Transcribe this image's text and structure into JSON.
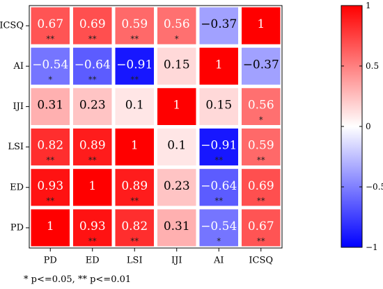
{
  "chart_data": {
    "type": "heatmap",
    "categories": [
      "PD",
      "ED",
      "LSI",
      "IJI",
      "AI",
      "ICSQ"
    ],
    "rows_top_to_bottom": [
      "ICSQ",
      "AI",
      "IJI",
      "LSI",
      "ED",
      "PD"
    ],
    "values": [
      [
        0.67,
        0.69,
        0.59,
        0.56,
        -0.37,
        1
      ],
      [
        -0.54,
        -0.64,
        -0.91,
        0.15,
        1,
        -0.37
      ],
      [
        0.31,
        0.23,
        0.1,
        1,
        0.15,
        0.56
      ],
      [
        0.82,
        0.89,
        1,
        0.1,
        -0.91,
        0.59
      ],
      [
        0.93,
        1,
        0.89,
        0.23,
        -0.64,
        0.69
      ],
      [
        1,
        0.93,
        0.82,
        0.31,
        -0.54,
        0.67
      ]
    ],
    "value_labels": [
      [
        "0.67",
        "0.69",
        "0.59",
        "0.56",
        "−0.37",
        "1"
      ],
      [
        "−0.54",
        "−0.64",
        "−0.91",
        "0.15",
        "1",
        "−0.37"
      ],
      [
        "0.31",
        "0.23",
        "0.1",
        "1",
        "0.15",
        "0.56"
      ],
      [
        "0.82",
        "0.89",
        "1",
        "0.1",
        "−0.91",
        "0.59"
      ],
      [
        "0.93",
        "1",
        "0.89",
        "0.23",
        "−0.64",
        "0.69"
      ],
      [
        "1",
        "0.93",
        "0.82",
        "0.31",
        "−0.54",
        "0.67"
      ]
    ],
    "significance": [
      [
        "**",
        "**",
        "**",
        "*",
        "",
        ""
      ],
      [
        "*",
        "**",
        "**",
        "",
        "",
        ""
      ],
      [
        "",
        "",
        "",
        "",
        "",
        "*"
      ],
      [
        "**",
        "**",
        "",
        "",
        "**",
        "**"
      ],
      [
        "**",
        "",
        "**",
        "",
        "**",
        "**"
      ],
      [
        "",
        "**",
        "**",
        "",
        "*",
        "**"
      ]
    ],
    "colorbar": {
      "range": [
        -1,
        1
      ],
      "ticks": [
        1,
        0.5,
        0,
        -0.5,
        -1
      ],
      "tick_labels": [
        "1",
        "0.5",
        "0",
        "−0.5",
        "−1"
      ],
      "colors": {
        "low": "#0000ff",
        "mid": "#ffffff",
        "high": "#ff0000"
      }
    },
    "footnote": "* p<=0.05, ** p<=0.01"
  }
}
